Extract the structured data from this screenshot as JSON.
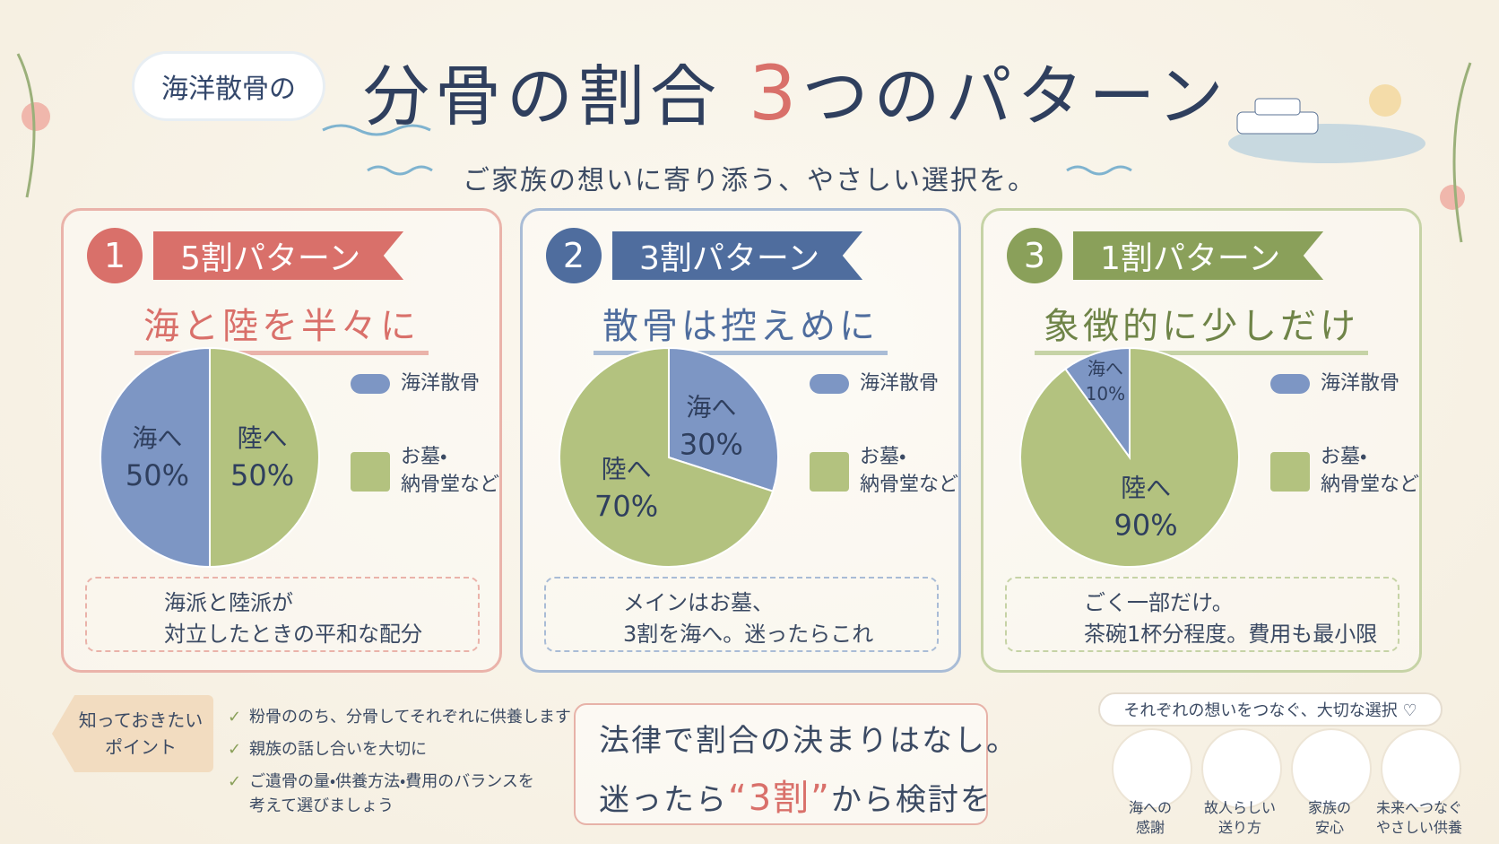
{
  "header": {
    "tag": "海洋散骨の",
    "title": "分骨の割合",
    "title_number": "3",
    "title_rest": "つのパターン",
    "subtitle": "ご家族の想いに寄り添う、やさしい選択を。"
  },
  "patterns": [
    {
      "number": "1",
      "label": "5割パターン",
      "heading": "海と陸を半々に",
      "legend": [
        "海洋散骨",
        "お墓・\n納骨堂など"
      ],
      "note": "海派と陸派が\n対立したときの平和な配分"
    },
    {
      "number": "2",
      "label": "3割パターン",
      "heading": "散骨は控えめに",
      "legend": [
        "海洋散骨",
        "お墓・\n納骨堂など"
      ],
      "note": "メインはお墓、\n3割を海へ。迷ったらこれ"
    },
    {
      "number": "3",
      "label": "1割パターン",
      "heading": "象徴的に少しだけ",
      "legend": [
        "海洋散骨",
        "お墓・\n納骨堂など"
      ],
      "note": "ごく一部だけ。\n茶碗1杯分程度。費用も最小限"
    }
  ],
  "chart_data": [
    {
      "type": "pie",
      "categories": [
        "海へ",
        "陸へ"
      ],
      "values": [
        50,
        50
      ],
      "value_labels": [
        "50%",
        "50%"
      ],
      "colors": [
        "#7d96c4",
        "#b3c27f"
      ],
      "clockwise": false
    },
    {
      "type": "pie",
      "categories": [
        "海へ",
        "陸へ"
      ],
      "values": [
        30,
        70
      ],
      "value_labels": [
        "30%",
        "70%"
      ],
      "colors": [
        "#7d96c4",
        "#b3c27f"
      ],
      "clockwise": true
    },
    {
      "type": "pie",
      "categories": [
        "海へ",
        "陸へ"
      ],
      "values": [
        10,
        90
      ],
      "value_labels": [
        "10%",
        "90%"
      ],
      "colors": [
        "#7d96c4",
        "#b3c27f"
      ],
      "clockwise": false
    }
  ],
  "points": {
    "tag": "知っておきたい\nポイント",
    "items": [
      "粉骨ののち、分骨してそれぞれに供養します",
      "親族の話し合いを大切に",
      "ご遺骨の量・供養方法・費用のバランスを\n考えて選びましょう"
    ]
  },
  "message": {
    "line1": "法律で割合の決まりはなし。",
    "prefix": "迷ったら",
    "accent": "“3割”",
    "suffix": "から検討を"
  },
  "values_section": {
    "heading": "それぞれの想いをつなぐ、大切な選択 ♡",
    "items": [
      "海への\n感謝",
      "故人らしい\n送り方",
      "家族の\n安心",
      "未来へつなぐ\nやさしい供養"
    ]
  }
}
